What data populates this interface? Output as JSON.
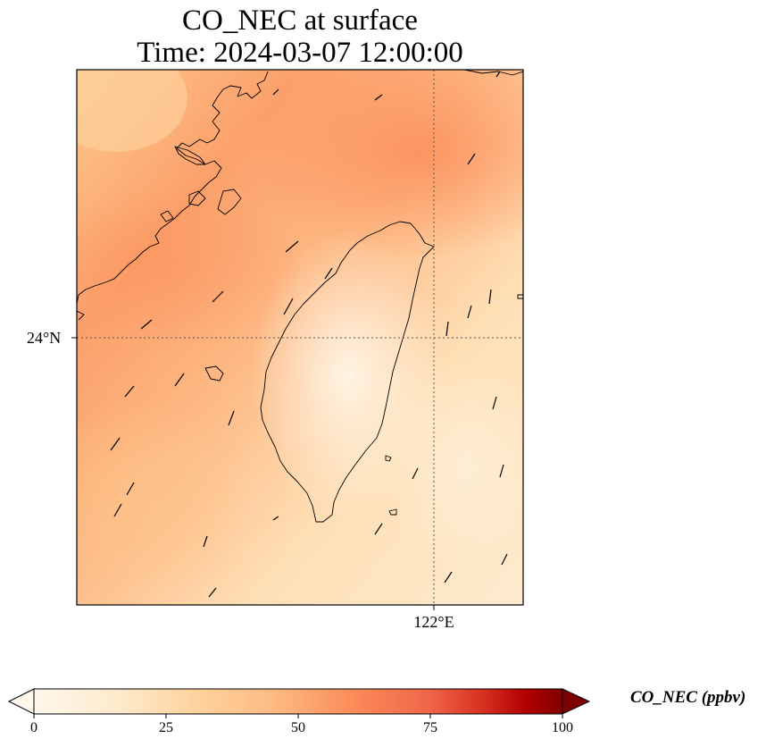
{
  "title_line1": "CO_NEC at surface",
  "title_line2": "Time: 2024-03-07 12:00:00",
  "axes": {
    "lat_label": "24°N",
    "lon_label": "122°E"
  },
  "colorbar": {
    "label": "CO_NEC (ppbv)",
    "ticks": [
      "0",
      "25",
      "50",
      "75",
      "100"
    ],
    "colormap": "OrRd",
    "extend": "both"
  },
  "colors": {
    "low": "#fff7ec",
    "mid": "#fdd49e",
    "high": "#fc8d59",
    "max": "#7f0000"
  }
}
